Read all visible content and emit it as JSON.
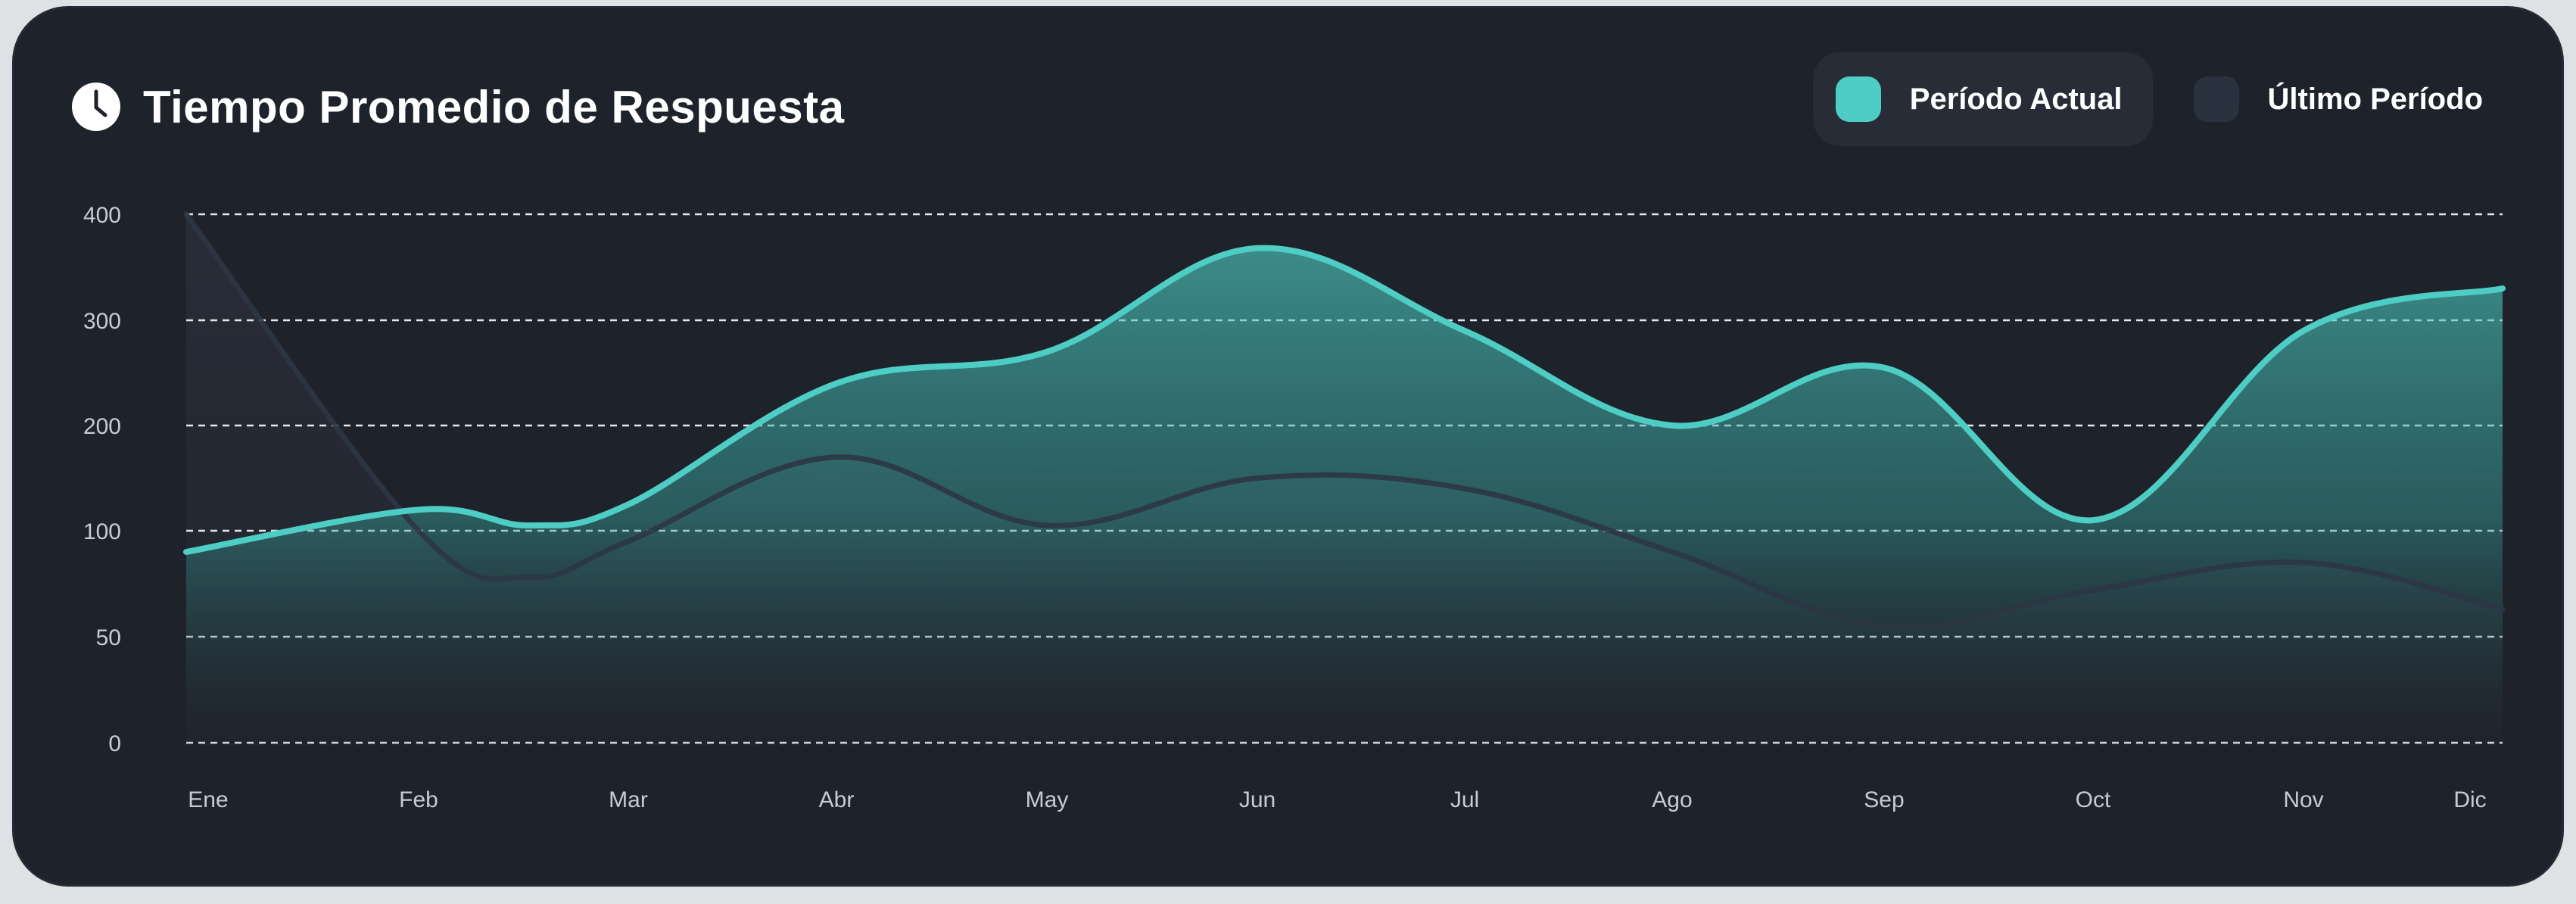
{
  "header": {
    "title": "Tiempo Promedio de Respuesta",
    "icon": "clock-icon"
  },
  "legend": [
    {
      "label": "Período Actual",
      "color": "#4ecdc4",
      "active": true
    },
    {
      "label": "Último Período",
      "color": "#2a3240",
      "active": false
    }
  ],
  "colors": {
    "background": "#1e222b",
    "current": "#4ecdc4",
    "previous": "#2c3644",
    "grid": "#e6e8ea"
  },
  "chart_data": {
    "type": "area",
    "title": "Tiempo Promedio de Respuesta",
    "categories": [
      "Ene",
      "Feb",
      "Mar",
      "Abr",
      "May",
      "Jun",
      "Jul",
      "Ago",
      "Sep",
      "Oct",
      "Nov",
      "Dic"
    ],
    "y_ticks": [
      "0",
      "50",
      "100",
      "200",
      "300",
      "400"
    ],
    "grid": true,
    "legend_position": "top-right",
    "series": [
      {
        "name": "Período Actual",
        "color": "#4ecdc4",
        "points": [
          {
            "x": "Ene",
            "y": 90
          },
          {
            "x": "Feb",
            "y": 120
          },
          {
            "x": "Feb-Mar",
            "y": 105
          },
          {
            "x": "Mar",
            "y": 125
          },
          {
            "x": "Abr",
            "y": 240
          },
          {
            "x": "May",
            "y": 270
          },
          {
            "x": "Jun",
            "y": 368
          },
          {
            "x": "Jul",
            "y": 290
          },
          {
            "x": "Ago",
            "y": 200
          },
          {
            "x": "Sep",
            "y": 255
          },
          {
            "x": "Oct",
            "y": 110
          },
          {
            "x": "Nov",
            "y": 290
          },
          {
            "x": "Dic",
            "y": 330
          }
        ]
      },
      {
        "name": "Último Período",
        "color": "#2c3644",
        "points": [
          {
            "x": "Ene",
            "y": 400
          },
          {
            "x": "Feb",
            "y": 100
          },
          {
            "x": "Feb-Mar",
            "y": 78
          },
          {
            "x": "Mar",
            "y": 95
          },
          {
            "x": "Abr",
            "y": 170
          },
          {
            "x": "May",
            "y": 105
          },
          {
            "x": "Jun",
            "y": 150
          },
          {
            "x": "Jul",
            "y": 140
          },
          {
            "x": "Ago",
            "y": 90
          },
          {
            "x": "Sep",
            "y": 55
          },
          {
            "x": "Oct",
            "y": 72
          },
          {
            "x": "Nov",
            "y": 85
          },
          {
            "x": "Dic",
            "y": 63
          }
        ]
      }
    ]
  }
}
